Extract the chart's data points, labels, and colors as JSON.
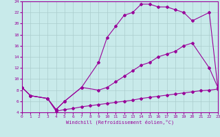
{
  "xlabel": "Windchill (Refroidissement éolien,°C)",
  "bg_color": "#c8eaea",
  "line_color": "#990099",
  "grid_color": "#aacccc",
  "series1_x": [
    0,
    1,
    3,
    4,
    5,
    7,
    9,
    10,
    11,
    12,
    13,
    14,
    15,
    16,
    17,
    18,
    19,
    20,
    22,
    23
  ],
  "series1_y": [
    8.5,
    7.0,
    6.5,
    4.5,
    6.0,
    8.5,
    13.0,
    17.5,
    19.5,
    21.5,
    22.0,
    23.5,
    23.5,
    23.0,
    23.0,
    22.5,
    22.0,
    20.5,
    22.0,
    8.5
  ],
  "series2_x": [
    0,
    1,
    3,
    4,
    5,
    7,
    9,
    10,
    11,
    12,
    13,
    14,
    15,
    16,
    17,
    18,
    19,
    20,
    22,
    23
  ],
  "series2_y": [
    8.5,
    7.0,
    6.5,
    4.5,
    6.0,
    8.5,
    8.0,
    8.5,
    9.5,
    10.5,
    11.5,
    12.5,
    13.0,
    14.0,
    14.5,
    15.0,
    16.0,
    16.5,
    12.0,
    8.5
  ],
  "series3_x": [
    0,
    1,
    3,
    4,
    5,
    6,
    7,
    8,
    9,
    10,
    11,
    12,
    13,
    14,
    15,
    16,
    17,
    18,
    19,
    20,
    21,
    22,
    23
  ],
  "series3_y": [
    8.5,
    7.0,
    6.5,
    4.2,
    4.5,
    4.7,
    5.0,
    5.2,
    5.4,
    5.6,
    5.8,
    6.0,
    6.2,
    6.5,
    6.7,
    6.9,
    7.1,
    7.3,
    7.5,
    7.7,
    7.9,
    8.0,
    8.2
  ],
  "xmin": 0,
  "xmax": 23,
  "ymin": 4,
  "ymax": 24,
  "xticks": [
    0,
    1,
    2,
    3,
    4,
    5,
    6,
    7,
    8,
    9,
    10,
    11,
    12,
    13,
    14,
    15,
    16,
    17,
    18,
    19,
    20,
    21,
    22,
    23
  ],
  "yticks": [
    4,
    6,
    8,
    10,
    12,
    14,
    16,
    18,
    20,
    22,
    24
  ]
}
